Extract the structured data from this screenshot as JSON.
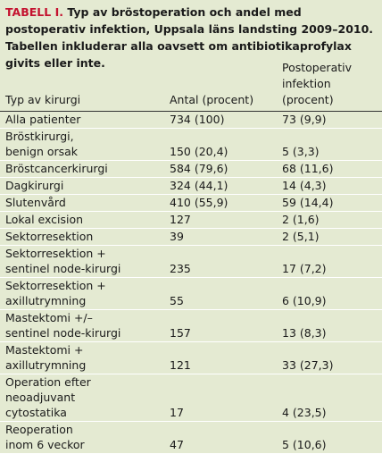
{
  "caption": {
    "label": "TABELL I.",
    "text": "Typ av bröstoperation och andel med postoperativ infektion, Uppsala läns landsting 2009–2010. Tabellen inkluderar alla oavsett om antibiotikaprofylax givits eller inte."
  },
  "table": {
    "columns": [
      "Typ av kirurgi",
      "Antal (procent)",
      "Postoperativ\ninfektion (procent)"
    ],
    "rows": [
      [
        "Alla patienter",
        "734 (100)",
        "73 (9,9)"
      ],
      [
        "Bröstkirurgi,\nbenign orsak",
        "150 (20,4)",
        "5 (3,3)"
      ],
      [
        "Bröstcancerkirurgi",
        "584 (79,6)",
        "68 (11,6)"
      ],
      [
        "Dagkirurgi",
        "324 (44,1)",
        "14 (4,3)"
      ],
      [
        "Slutenvård",
        "410 (55,9)",
        "59 (14,4)"
      ],
      [
        "Lokal excision",
        "127",
        "2 (1,6)"
      ],
      [
        "Sektorresektion",
        "39",
        "2 (5,1)"
      ],
      [
        "Sektorresektion +\nsentinel node-kirurgi",
        "235",
        "17 (7,2)"
      ],
      [
        "Sektorresektion +\naxillutrymning",
        "55",
        "6 (10,9)"
      ],
      [
        "Mastektomi +/–\nsentinel node-kirurgi",
        "157",
        "13 (8,3)"
      ],
      [
        "Mastektomi +\naxillutrymning",
        "121",
        "33 (27,3)"
      ],
      [
        "Operation efter\nneoadjuvant\ncytostatika",
        "17",
        "4 (23,5)"
      ],
      [
        "Reoperation\ninom 6 veckor",
        "47",
        "5 (10,6)"
      ]
    ]
  }
}
